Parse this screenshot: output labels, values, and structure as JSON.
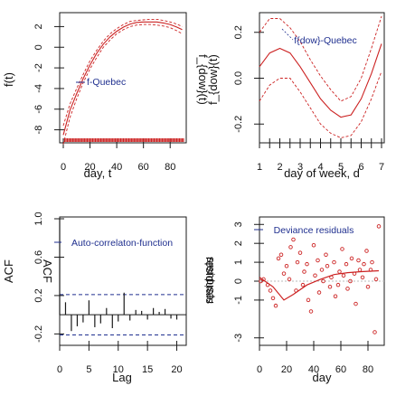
{
  "colors": {
    "red": "#cc2222",
    "blue": "#1f2f8f",
    "axis": "#1a1a1a",
    "inner": "#bbbbbb",
    "rug": "#cc2222"
  },
  "chart_data": [
    {
      "id": "trend",
      "type": "line",
      "ylabel_outer": "f(t)",
      "ylabel_inner": "",
      "xlabel": "day, t",
      "annotation": "f-Quebec",
      "xlim": [
        0,
        90
      ],
      "ylim": [
        -9,
        3
      ],
      "xticks": [
        0,
        20,
        40,
        60,
        80
      ],
      "xtick_labels": [
        "0",
        "20",
        "40",
        "60",
        "80"
      ],
      "yticks": [
        2,
        0,
        -2,
        -4,
        -6,
        -8
      ],
      "ytick_labels": [
        "2",
        "0",
        "-2",
        "-4",
        "-6",
        "-8"
      ],
      "rug": "daily",
      "series": [
        {
          "role": "upper",
          "x": [
            0,
            5,
            10,
            15,
            20,
            25,
            30,
            35,
            40,
            45,
            50,
            55,
            60,
            65,
            70,
            75,
            80,
            85,
            89
          ],
          "y": [
            -7.6,
            -5.5,
            -4.0,
            -2.6,
            -1.3,
            -0.3,
            0.6,
            1.3,
            1.8,
            2.2,
            2.5,
            2.6,
            2.65,
            2.7,
            2.7,
            2.6,
            2.45,
            2.25,
            2.0
          ]
        },
        {
          "role": "fit",
          "x": [
            0,
            5,
            10,
            15,
            20,
            25,
            30,
            35,
            40,
            45,
            50,
            55,
            60,
            65,
            70,
            75,
            80,
            85,
            89
          ],
          "y": [
            -8.5,
            -6.1,
            -4.5,
            -3.0,
            -1.7,
            -0.6,
            0.3,
            1.0,
            1.55,
            1.95,
            2.25,
            2.4,
            2.45,
            2.45,
            2.45,
            2.35,
            2.2,
            1.95,
            1.7
          ]
        },
        {
          "role": "lower",
          "x": [
            0,
            5,
            10,
            15,
            20,
            25,
            30,
            35,
            40,
            45,
            50,
            55,
            60,
            65,
            70,
            75,
            80,
            85,
            89
          ],
          "y": [
            -9.4,
            -6.8,
            -5.0,
            -3.4,
            -2.1,
            -1.0,
            0.0,
            0.7,
            1.3,
            1.7,
            2.0,
            2.15,
            2.2,
            2.2,
            2.15,
            2.05,
            1.9,
            1.6,
            1.3
          ]
        }
      ]
    },
    {
      "id": "dow",
      "type": "line",
      "ylabel_outer": "f_{dow}(t)",
      "ylabel_inner": "f_{dow}(t)",
      "xlabel": "day of week, d",
      "annotation": "f{dow}-Quebec",
      "xlim": [
        1,
        7
      ],
      "ylim": [
        -0.27,
        0.27
      ],
      "xticks": [
        1,
        1.5,
        2,
        2.5,
        3,
        3.5,
        4,
        4.5,
        5,
        5.5,
        6,
        6.5,
        7
      ],
      "xtick_labels": [
        "1",
        "",
        "2",
        "",
        "3",
        "",
        "4",
        "",
        "5",
        "",
        "6",
        "",
        "7"
      ],
      "yticks": [
        0.2,
        0.0,
        -0.2
      ],
      "ytick_labels": [
        "0.2",
        "0.0",
        "-0.2"
      ],
      "series": [
        {
          "role": "upper",
          "x": [
            1,
            1.5,
            2,
            2.5,
            3,
            3.5,
            4,
            4.5,
            5,
            5.5,
            6,
            6.5,
            7
          ],
          "y": [
            0.2,
            0.26,
            0.26,
            0.22,
            0.16,
            0.08,
            0.01,
            -0.05,
            -0.1,
            -0.08,
            0.0,
            0.13,
            0.27
          ]
        },
        {
          "role": "fit",
          "x": [
            1,
            1.5,
            2,
            2.5,
            3,
            3.5,
            4,
            4.5,
            5,
            5.5,
            6,
            6.5,
            7
          ],
          "y": [
            0.05,
            0.11,
            0.13,
            0.11,
            0.05,
            -0.02,
            -0.09,
            -0.14,
            -0.17,
            -0.16,
            -0.09,
            0.02,
            0.15
          ]
        },
        {
          "role": "lower",
          "x": [
            1,
            1.5,
            2,
            2.5,
            3,
            3.5,
            4,
            4.5,
            5,
            5.5,
            6,
            6.5,
            7
          ],
          "y": [
            -0.1,
            -0.03,
            0.0,
            0.0,
            -0.06,
            -0.13,
            -0.2,
            -0.24,
            -0.26,
            -0.25,
            -0.19,
            -0.09,
            0.03
          ]
        }
      ]
    },
    {
      "id": "acf",
      "type": "bar",
      "ylabel_outer": "ACF",
      "ylabel_inner": "ACF",
      "xlabel": "Lag",
      "annotation": "Auto-correlaton-function",
      "xlim": [
        0,
        21
      ],
      "ylim": [
        -0.3,
        1.0
      ],
      "xticks": [
        0,
        5,
        10,
        15,
        20
      ],
      "xtick_labels": [
        "0",
        "5",
        "10",
        "15",
        "20"
      ],
      "yticks": [
        1.0,
        0.6,
        0.2,
        -0.2
      ],
      "ytick_labels": [
        "1.0",
        "0.6",
        "0.2",
        "-0.2"
      ],
      "conf_band": [
        0.21,
        -0.21
      ],
      "lags": [
        0,
        1,
        2,
        3,
        4,
        5,
        6,
        7,
        8,
        9,
        10,
        11,
        12,
        13,
        14,
        15,
        16,
        17,
        18,
        19,
        20
      ],
      "values": [
        1.0,
        0.13,
        -0.17,
        -0.12,
        -0.08,
        0.15,
        -0.13,
        -0.09,
        0.07,
        -0.14,
        -0.07,
        0.23,
        -0.06,
        0.05,
        0.04,
        -0.05,
        0.07,
        0.03,
        0.06,
        -0.04,
        -0.05
      ]
    },
    {
      "id": "resid",
      "type": "scatter",
      "ylabel_outer": "residuals",
      "ylabel_inner": "residuals",
      "xlabel": "day",
      "annotation": "Deviance residuals",
      "xlim": [
        0,
        90
      ],
      "ylim": [
        -3.3,
        3.3
      ],
      "xticks": [
        0,
        20,
        40,
        60,
        80
      ],
      "xtick_labels": [
        "0",
        "20",
        "40",
        "60",
        "80"
      ],
      "yticks": [
        3,
        2,
        1,
        0,
        -1,
        -3
      ],
      "ytick_labels": [
        "3",
        "2",
        "1",
        "0",
        "-1",
        "-3"
      ],
      "x": [
        1,
        3,
        6,
        8,
        10,
        12,
        14,
        16,
        18,
        20,
        22,
        23,
        25,
        27,
        28,
        30,
        32,
        33,
        35,
        36,
        38,
        40,
        41,
        43,
        44,
        46,
        47,
        49,
        50,
        52,
        53,
        55,
        56,
        58,
        59,
        61,
        62,
        64,
        65,
        67,
        68,
        70,
        71,
        73,
        74,
        76,
        77,
        79,
        80,
        82,
        83,
        85,
        86,
        88
      ],
      "y": [
        0.0,
        0.1,
        -0.2,
        -0.5,
        -0.9,
        -1.3,
        1.2,
        1.4,
        0.4,
        0.8,
        0.1,
        1.8,
        2.2,
        -0.5,
        1.0,
        1.5,
        -0.2,
        0.5,
        0.9,
        -1.0,
        -1.6,
        1.9,
        0.3,
        1.1,
        -0.6,
        0.6,
        0.0,
        1.4,
        0.8,
        -0.3,
        0.2,
        1.0,
        -0.8,
        -0.2,
        0.5,
        1.7,
        0.3,
        0.9,
        -0.4,
        0.0,
        1.2,
        0.4,
        -1.2,
        1.1,
        0.6,
        0.2,
        0.9,
        1.6,
        -0.3,
        0.6,
        1.0,
        -2.7,
        0.1,
        2.9
      ],
      "smooth_x": [
        0,
        10,
        18,
        25,
        35,
        45,
        55,
        65,
        75,
        88
      ],
      "smooth_y": [
        0.2,
        -0.3,
        -1.0,
        -0.7,
        -0.2,
        0.1,
        0.35,
        0.45,
        0.5,
        0.55
      ]
    }
  ]
}
